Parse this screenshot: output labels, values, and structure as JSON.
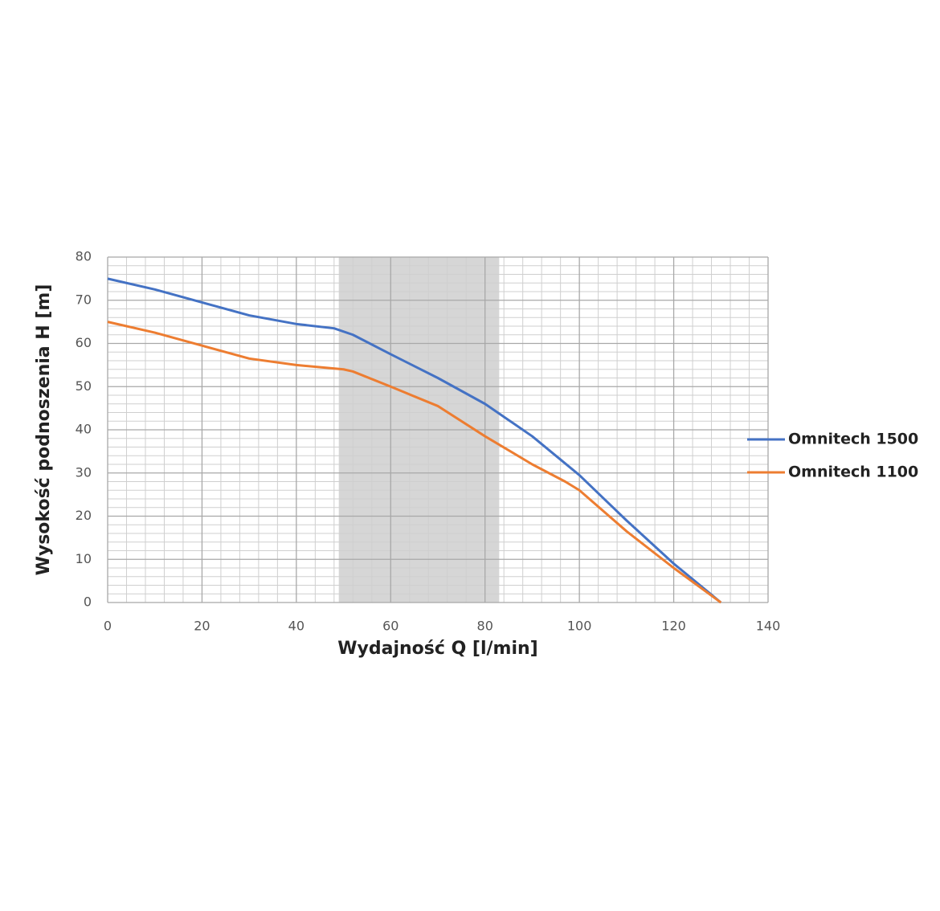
{
  "chart_data": {
    "type": "line",
    "x_label": "Wydajność Q [l/min]",
    "y_label": "Wysokość podnoszenia H [m]",
    "xlim": [
      0,
      140
    ],
    "xticks": [
      0,
      20,
      40,
      60,
      80,
      100,
      120,
      140
    ],
    "ylim": [
      0,
      80
    ],
    "yticks": [
      0,
      10,
      20,
      30,
      40,
      50,
      60,
      70,
      80
    ],
    "grid": true,
    "highlight_range": [
      49,
      83
    ],
    "highlight_color": "#d6d6d6",
    "legend": "right",
    "series": [
      {
        "name": "Omnitech 1500",
        "color": "#4472c4",
        "x": [
          0,
          10,
          20,
          30,
          40,
          48,
          52,
          60,
          70,
          80,
          90,
          100,
          110,
          120,
          130
        ],
        "values": [
          75,
          72.5,
          69.5,
          66.5,
          64.5,
          63.5,
          62,
          57.5,
          52,
          46,
          38.5,
          29.5,
          19,
          9,
          0
        ]
      },
      {
        "name": "Omnitech 1100",
        "color": "#ed7d31",
        "x": [
          0,
          10,
          20,
          30,
          40,
          50,
          52,
          60,
          70,
          80,
          90,
          97,
          100,
          110,
          120,
          130
        ],
        "values": [
          65,
          62.5,
          59.5,
          56.5,
          55,
          54,
          53.5,
          50,
          45.5,
          38.5,
          32,
          28,
          26,
          16.5,
          8,
          0
        ]
      }
    ]
  }
}
